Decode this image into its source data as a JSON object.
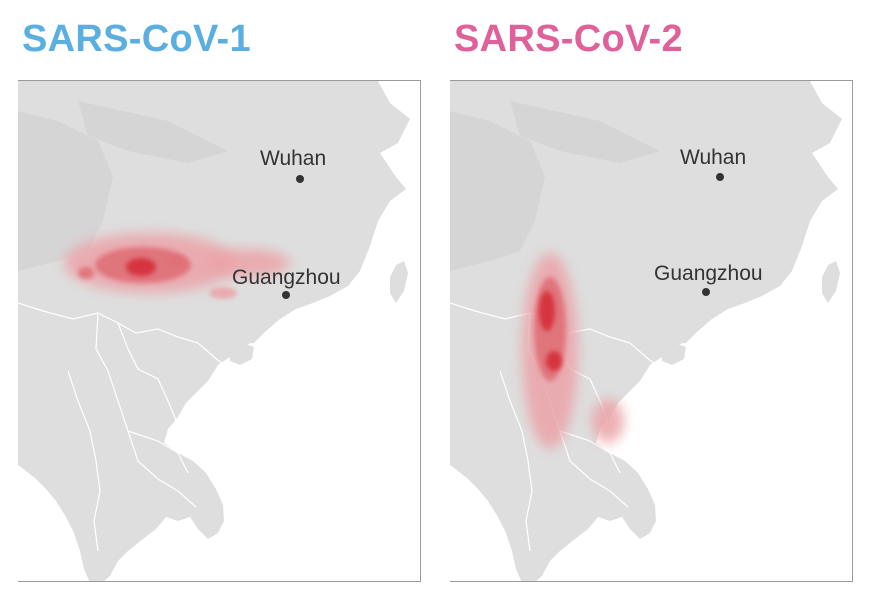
{
  "colors": {
    "cov1_title": "#5aaee0",
    "cov2_title": "#e0609a",
    "land": "#dedede",
    "land_shadow": "#cfcfcf",
    "border": "#ffffff",
    "density_light": "#eba3a8",
    "density_mid": "#e07077",
    "density_dark": "#d63640",
    "city": "#333333"
  },
  "panels": [
    {
      "id": "sars-cov-1",
      "title": "SARS-CoV-1",
      "cities": [
        {
          "name": "Wuhan"
        },
        {
          "name": "Guangzhou"
        }
      ]
    },
    {
      "id": "sars-cov-2",
      "title": "SARS-CoV-2",
      "cities": [
        {
          "name": "Wuhan"
        },
        {
          "name": "Guangzhou"
        }
      ]
    }
  ]
}
